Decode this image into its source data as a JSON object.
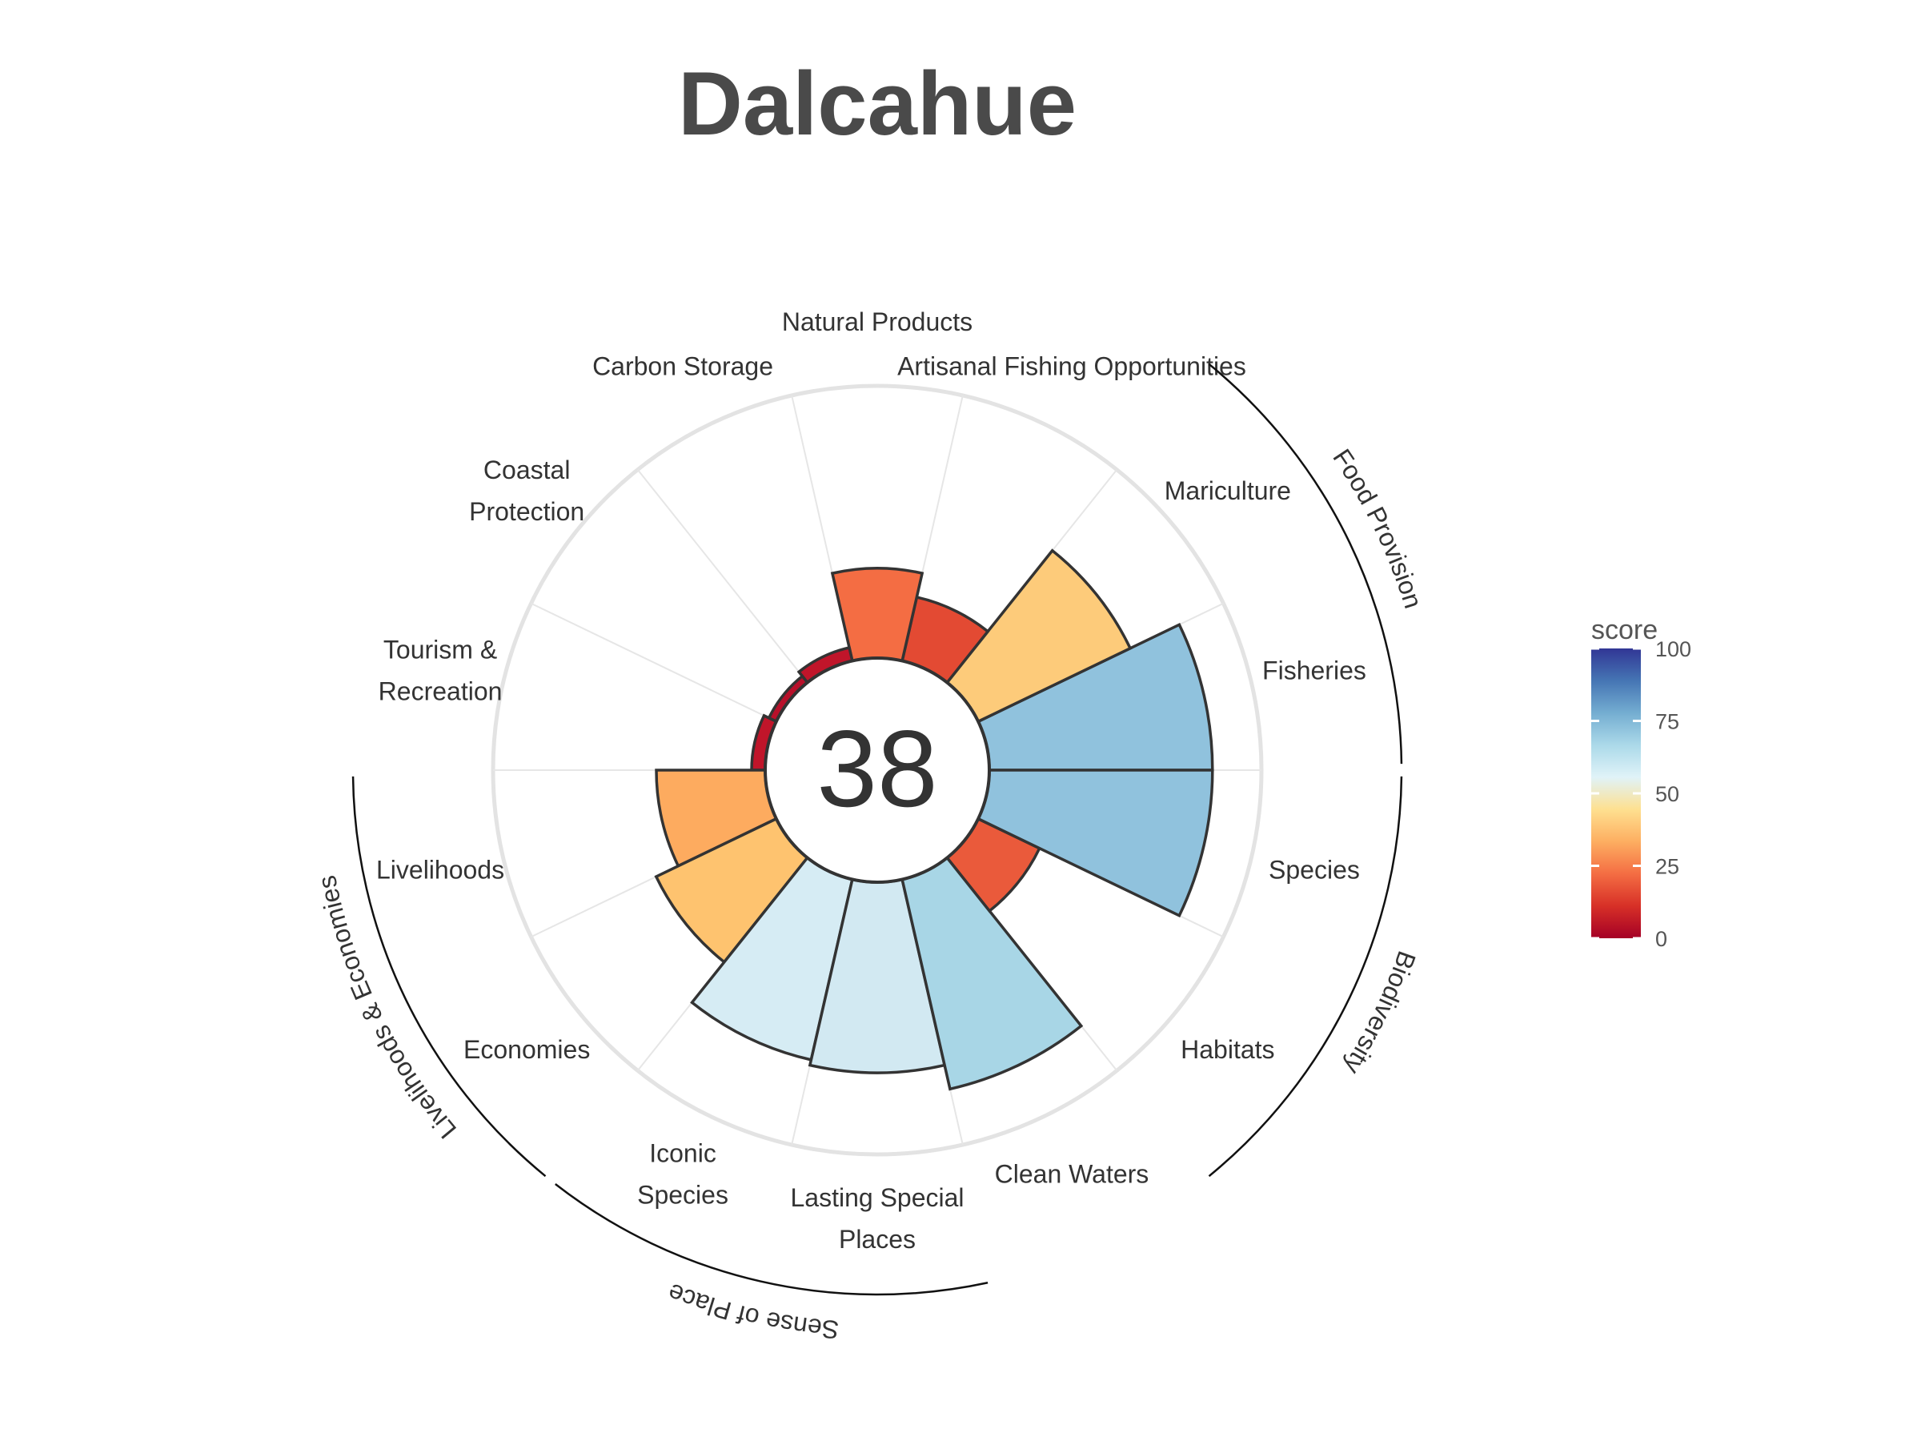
{
  "title": "Dalcahue",
  "chart_data": {
    "type": "polar-bar",
    "title": "Dalcahue",
    "center_score": "38",
    "value_range": [
      0,
      100
    ],
    "goals": [
      {
        "name": "Fisheries",
        "lines": [
          "Fisheries"
        ],
        "score": 82,
        "color": "#90c2dd"
      },
      {
        "name": "Mariculture",
        "lines": [
          "Mariculture"
        ],
        "score": 62,
        "color": "#fdcb7a"
      },
      {
        "name": "Artisanal Fishing Opportunities",
        "lines": [
          "Artisanal Fishing Opportunities"
        ],
        "score": 24,
        "color": "#e34a33"
      },
      {
        "name": "Natural Products",
        "lines": [
          "Natural Products"
        ],
        "score": 33,
        "color": "#f46d43"
      },
      {
        "name": "Carbon Storage",
        "lines": [
          "Carbon Storage"
        ],
        "score": 5,
        "color": "#c0152a"
      },
      {
        "name": "Coastal Protection",
        "lines": [
          "Coastal",
          "Protection"
        ],
        "score": 3,
        "color": "#b8102a"
      },
      {
        "name": "Tourism & Recreation",
        "lines": [
          "Tourism &",
          "Recreation"
        ],
        "score": 5,
        "color": "#c0152a"
      },
      {
        "name": "Livelihoods",
        "lines": [
          "Livelihoods"
        ],
        "score": 40,
        "color": "#fdab5f"
      },
      {
        "name": "Economies",
        "lines": [
          "Economies"
        ],
        "score": 49,
        "color": "#fec36f"
      },
      {
        "name": "Iconic Species",
        "lines": [
          "Iconic",
          "Species"
        ],
        "score": 68,
        "color": "#d6ecf4"
      },
      {
        "name": "Lasting Special Places",
        "lines": [
          "Lasting Special",
          "Places"
        ],
        "score": 70,
        "color": "#d2e9f2"
      },
      {
        "name": "Clean Waters",
        "lines": [
          "Clean Waters"
        ],
        "score": 79,
        "color": "#a8d6e6"
      },
      {
        "name": "Habitats",
        "lines": [
          "Habitats"
        ],
        "score": 25,
        "color": "#ea5a3b"
      },
      {
        "name": "Species",
        "lines": [
          "Species"
        ],
        "score": 82,
        "color": "#90c2dd"
      }
    ],
    "groups": [
      {
        "name": "Food Provision",
        "goals": [
          "Fisheries",
          "Mariculture"
        ]
      },
      {
        "name": "Biodiversity",
        "goals": [
          "Habitats",
          "Species"
        ]
      },
      {
        "name": "Sense of Place",
        "goals": [
          "Iconic Species",
          "Lasting Special Places"
        ]
      },
      {
        "name": "Livelihoods & Economies",
        "goals": [
          "Livelihoods",
          "Economies"
        ]
      }
    ],
    "legend": {
      "title": "score",
      "ticks": [
        "100",
        "75",
        "50",
        "25",
        "0"
      ],
      "placement": "right",
      "colors": [
        "#313695",
        "#4575b4",
        "#74add1",
        "#abd9e9",
        "#e0f3f8",
        "#fee090",
        "#fdae61",
        "#f46d43",
        "#d73027",
        "#a50026"
      ]
    }
  }
}
